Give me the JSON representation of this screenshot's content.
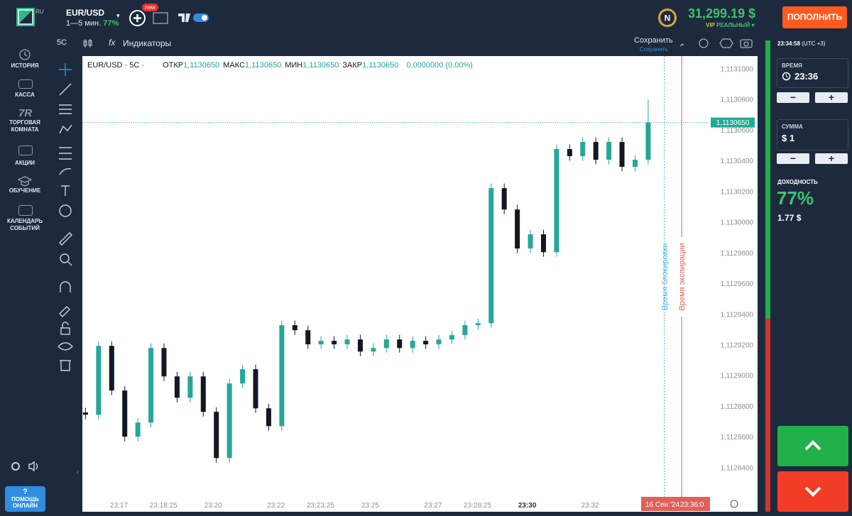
{
  "header": {
    "logo_suffix": "RU",
    "asset": "EUR/USD",
    "timeframe": "1—5 мин.",
    "payout": "77%",
    "new_badge": "new",
    "balance": "31,299.19 $",
    "account_tier": "VIP",
    "account_type": "РЕАЛЬНЫЙ",
    "deposit_button": "ПОПОЛНИТЬ"
  },
  "sidebar": {
    "items": [
      "ИСТОРИЯ",
      "КАССА",
      "ТОРГОВАЯ КОМНАТА",
      "АКЦИИ",
      "ОБУЧЕНИЕ",
      "КАЛЕНДАРЬ СОБЫТИЙ"
    ],
    "room_icon": "7R",
    "help_icon": "?",
    "help": "ПОМОЩЬ ОНЛАЙН"
  },
  "toolbar": {
    "interval": "5С",
    "fx": "fx",
    "indicators": "Индикаторы",
    "save": "Сохранить",
    "save_sub": "Сохранить"
  },
  "trade_panel": {
    "clock": "23:34:58",
    "timezone": "(UTC +3)",
    "time_label": "ВРЕМЯ",
    "time_value": "23:36",
    "minus": "−",
    "plus": "+",
    "amount_label": "СУММА",
    "amount_value": "$ 1",
    "yield_label": "ДОХОДНОСТЬ",
    "yield_percent": "77%",
    "yield_amount": "1.77 $"
  },
  "chart_data": {
    "type": "candlestick",
    "title": "EUR/USD · 5С ·",
    "ohlc_legend": [
      {
        "label": "ОТКР",
        "value": "1,1130650"
      },
      {
        "label": "МАКС",
        "value": "1,1130650"
      },
      {
        "label": "МИН",
        "value": "1,1130650"
      },
      {
        "label": "ЗАКР",
        "value": "1,1130650"
      }
    ],
    "change": "0,0000000 (0,00%)",
    "x": [
      956,
      981,
      1006,
      1031,
      1056,
      1081,
      1106,
      1131,
      1156,
      1181,
      1206,
      1231,
      1256,
      1281,
      1306,
      1331,
      1356,
      1381,
      1406,
      1431,
      1456,
      1481,
      1506,
      1531,
      1556,
      1581,
      1606,
      1631,
      1656,
      1681,
      1706,
      1731,
      1756,
      1781,
      1806,
      1831,
      1856,
      1881,
      1906,
      1931,
      1956,
      1981,
      2006,
      2031
    ],
    "open": [
      1.112876,
      1.1128745,
      1.1129194,
      1.1128903,
      1.1128602,
      1.1128694,
      1.112918,
      1.1128995,
      1.1128856,
      1.1128995,
      1.1128764,
      1.1128463,
      1.1128949,
      1.1129042,
      1.1128787,
      1.1128671,
      1.1129329,
      1.1129296,
      1.1129204,
      1.1129227,
      1.1129204,
      1.1129236,
      1.1129157,
      1.112918,
      1.1129236,
      1.112918,
      1.1129227,
      1.1129204,
      1.1129236,
      1.1129264,
      1.1129329,
      1.1129342,
      1.1130222,
      1.1130083,
      1.1129829,
      1.1129921,
      1.1129805,
      1.1130477,
      1.1130431,
      1.1130523,
      1.1130407,
      1.1130523,
      1.1130361,
      1.1130407
    ],
    "high": [
      1.112879,
      1.1129224,
      1.1129224,
      1.1128933,
      1.1128724,
      1.112921,
      1.112921,
      1.1129025,
      1.1129025,
      1.1129025,
      1.1128794,
      1.1128979,
      1.1129072,
      1.1129072,
      1.1128817,
      1.1129359,
      1.1129359,
      1.1129326,
      1.1129257,
      1.1129257,
      1.1129266,
      1.1129266,
      1.112921,
      1.1129266,
      1.1129266,
      1.1129257,
      1.1129257,
      1.1129266,
      1.1129294,
      1.1129359,
      1.1129372,
      1.1130252,
      1.1130252,
      1.1130113,
      1.1129951,
      1.1129951,
      1.1130507,
      1.1130507,
      1.1130553,
      1.1130553,
      1.1130553,
      1.1130553,
      1.1130437,
      1.11308
    ],
    "low": [
      1.1128715,
      1.1128715,
      1.1128873,
      1.1128572,
      1.1128572,
      1.1128664,
      1.1128965,
      1.1128826,
      1.1128826,
      1.1128734,
      1.1128433,
      1.1128433,
      1.1128919,
      1.1128757,
      1.1128641,
      1.1128641,
      1.1129266,
      1.1129174,
      1.1129174,
      1.1129174,
      1.1129174,
      1.1129127,
      1.1129127,
      1.112915,
      1.112915,
      1.112915,
      1.1129174,
      1.1129174,
      1.1129206,
      1.1129234,
      1.1129299,
      1.1129312,
      1.1130053,
      1.1129799,
      1.1129799,
      1.1129775,
      1.1129775,
      1.1130401,
      1.1130401,
      1.1130377,
      1.1130377,
      1.1130331,
      1.1130331,
      1.1130377
    ],
    "close": [
      1.1128745,
      1.1129194,
      1.1128903,
      1.1128602,
      1.1128694,
      1.112918,
      1.1128995,
      1.1128856,
      1.1128995,
      1.1128764,
      1.1128463,
      1.1128949,
      1.1129042,
      1.1128787,
      1.1128671,
      1.1129329,
      1.1129296,
      1.1129204,
      1.1129227,
      1.1129204,
      1.1129236,
      1.1129157,
      1.112918,
      1.1129236,
      1.112918,
      1.1129227,
      1.1129204,
      1.1129236,
      1.1129264,
      1.1129329,
      1.1129342,
      1.1130222,
      1.1130083,
      1.1129829,
      1.1129921,
      1.1129805,
      1.1130477,
      1.1130431,
      1.1130523,
      1.1130407,
      1.1130523,
      1.1130361,
      1.1130407,
      1.113065
    ],
    "up_color": "#26a69a",
    "down_color": "#131722",
    "xlim": [
      950,
      2240
    ],
    "ylim": [
      1.112821,
      1.1131083
    ],
    "xticks": [
      {
        "value": 1020,
        "label": "23:17"
      },
      {
        "value": 1105,
        "label": "23:18:25"
      },
      {
        "value": 1200,
        "label": "23:20"
      },
      {
        "value": 1320,
        "label": "23:22"
      },
      {
        "value": 1405,
        "label": "23:23:25"
      },
      {
        "value": 1500,
        "label": "23:25"
      },
      {
        "value": 1620,
        "label": "23:27"
      },
      {
        "value": 1705,
        "label": "23:28:25"
      },
      {
        "value": 1800,
        "label": "23:30",
        "bold": true
      },
      {
        "value": 1920,
        "label": "23:32"
      }
    ],
    "yticks": [
      {
        "value": 1.1131,
        "label": "1,1131000"
      },
      {
        "value": 1.11308,
        "label": "1,1130800"
      },
      {
        "value": 1.11306,
        "label": "1,1130600"
      },
      {
        "value": 1.11304,
        "label": "1,1130400"
      },
      {
        "value": 1.11302,
        "label": "1,1130200"
      },
      {
        "value": 1.113,
        "label": "1,1130000"
      },
      {
        "value": 1.11298,
        "label": "1,1129800"
      },
      {
        "value": 1.11296,
        "label": "1,1129600"
      },
      {
        "value": 1.11294,
        "label": "1,1129400"
      },
      {
        "value": 1.11292,
        "label": "1,1129200"
      },
      {
        "value": 1.1129,
        "label": "1,1129000"
      },
      {
        "value": 1.11288,
        "label": "1,1128800"
      },
      {
        "value": 1.11286,
        "label": "1,1128600"
      },
      {
        "value": 1.11284,
        "label": "1,1128400"
      }
    ],
    "grid": false,
    "last_price": {
      "value": 1.113065,
      "label": "1,1130650",
      "color": "#22ab94"
    },
    "markers": [
      {
        "x": 2062,
        "label": "Время блокировки",
        "color": "#4fb3e8",
        "dashed": true
      },
      {
        "x": 2095,
        "label": "Время экспирации",
        "color": "#e0605a",
        "dashed": false
      }
    ],
    "expiry_date": "16 Сен '24",
    "expiry_time": "23:36:0",
    "sentiment_buy": 59
  }
}
